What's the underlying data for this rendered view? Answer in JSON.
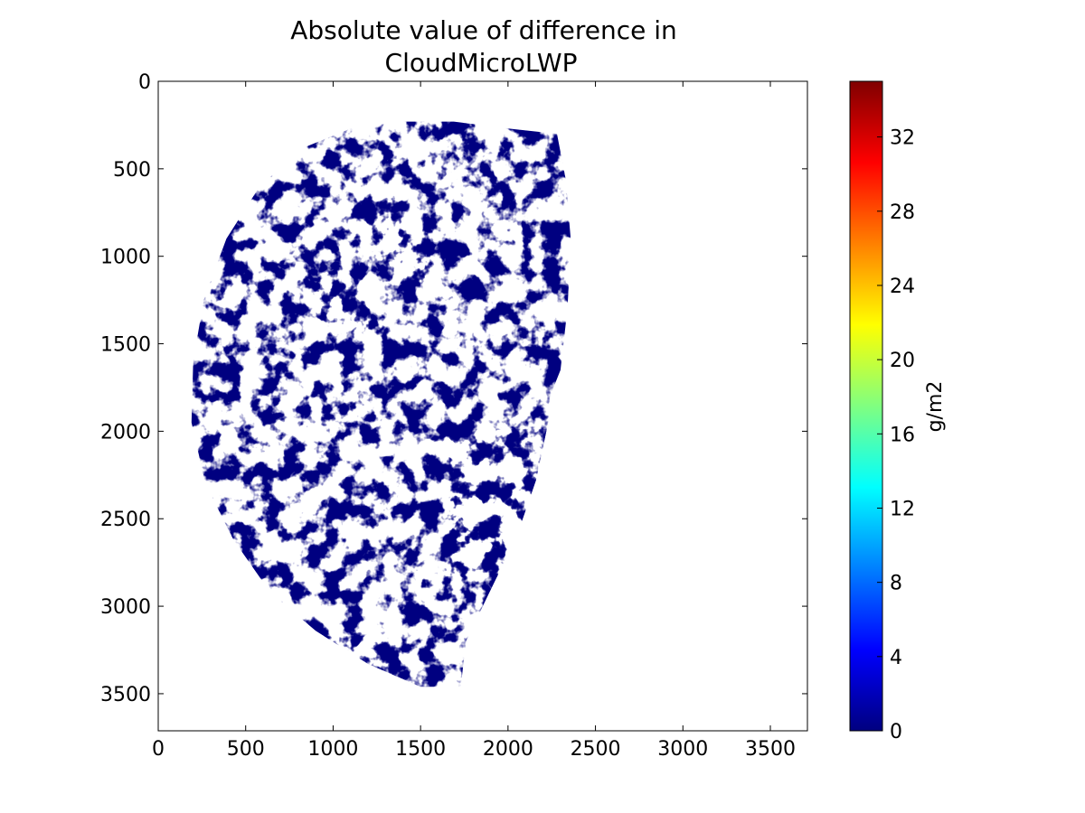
{
  "chart_data": {
    "type": "heatmap",
    "title_lines": [
      "Absolute value of difference in",
      "CloudMicroLWP"
    ],
    "xlabel": "",
    "ylabel": "",
    "xlim": [
      0,
      3712
    ],
    "ylim": [
      3712,
      0
    ],
    "y_inverted": true,
    "xticks": [
      0,
      500,
      1000,
      1500,
      2000,
      2500,
      3000,
      3500
    ],
    "yticks": [
      0,
      500,
      1000,
      1500,
      2000,
      2500,
      3000,
      3500
    ],
    "grid": false,
    "colormap": "jet",
    "colorbar": {
      "label": "g/m2",
      "range": [
        0,
        35
      ],
      "ticks": [
        0,
        4,
        8,
        12,
        16,
        20,
        24,
        28,
        32
      ],
      "stops": [
        "#000080",
        "#0000ff",
        "#0080ff",
        "#00ffff",
        "#80ff80",
        "#ffff00",
        "#ff8000",
        "#ff0000",
        "#800000"
      ]
    },
    "description": "Satellite disk view; nearly all nonzero differences are near 0 (dark navy), white where no data",
    "masked_color": "#ffffff",
    "dominant_value": 0,
    "dominant_color": "#000080"
  }
}
